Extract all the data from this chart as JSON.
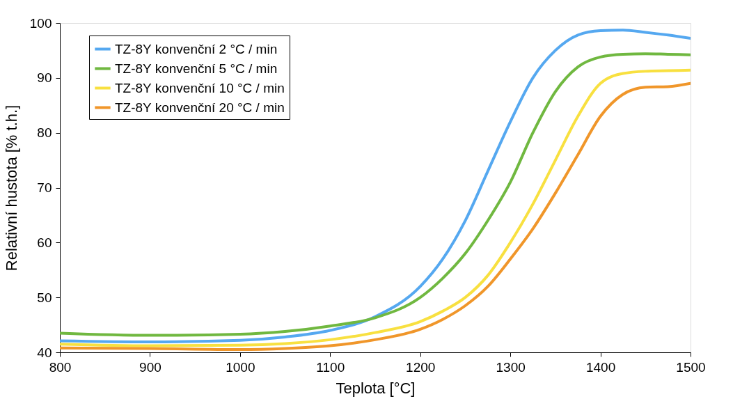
{
  "chart_data": {
    "type": "line",
    "xlabel": "Teplota [°C]",
    "ylabel": "Relativní hustota [% t.h.]",
    "x": [
      800,
      900,
      1000,
      1050,
      1100,
      1150,
      1200,
      1225,
      1250,
      1275,
      1300,
      1325,
      1350,
      1375,
      1400,
      1425,
      1450,
      1475,
      1500
    ],
    "series": [
      {
        "name": "TZ-8Y konvenční 2 °C / min",
        "color": "#55a8f0",
        "values": [
          42.1,
          41.9,
          42.2,
          42.8,
          44.0,
          46.5,
          52,
          57,
          64,
          73,
          82,
          90,
          95,
          97.8,
          98.6,
          98.7,
          98.3,
          97.8,
          97.2
        ]
      },
      {
        "name": "TZ-8Y konvenční 5 °C / min",
        "color": "#70b840",
        "values": [
          43.5,
          43.1,
          43.3,
          43.8,
          44.8,
          46.3,
          50,
          53.5,
          58,
          64,
          71,
          80,
          87.5,
          92,
          93.8,
          94.3,
          94.4,
          94.3,
          94.2
        ]
      },
      {
        "name": "TZ-8Y konvenční 10 °C / min",
        "color": "#f8e040",
        "values": [
          41.5,
          41.2,
          41.3,
          41.6,
          42.3,
          43.6,
          45.6,
          47.5,
          50,
          54,
          60,
          67,
          75,
          83,
          89,
          90.8,
          91.2,
          91.3,
          91.4
        ]
      },
      {
        "name": "TZ-8Y konvenční 20 °C / min",
        "color": "#f0962a",
        "values": [
          40.8,
          40.7,
          40.5,
          40.7,
          41.2,
          42.3,
          44.2,
          46,
          48.5,
          52,
          57,
          62.5,
          69,
          76,
          83,
          87,
          88.3,
          88.4,
          89
        ]
      }
    ],
    "xlim": [
      800,
      1500
    ],
    "xticks": [
      800,
      900,
      1000,
      1100,
      1200,
      1300,
      1400,
      1500
    ],
    "ylim": [
      40,
      100
    ],
    "yticks": [
      40,
      50,
      60,
      70,
      80,
      90,
      100
    ],
    "grid": false,
    "legend": "top left",
    "marker": "none",
    "line_style": "solid"
  }
}
